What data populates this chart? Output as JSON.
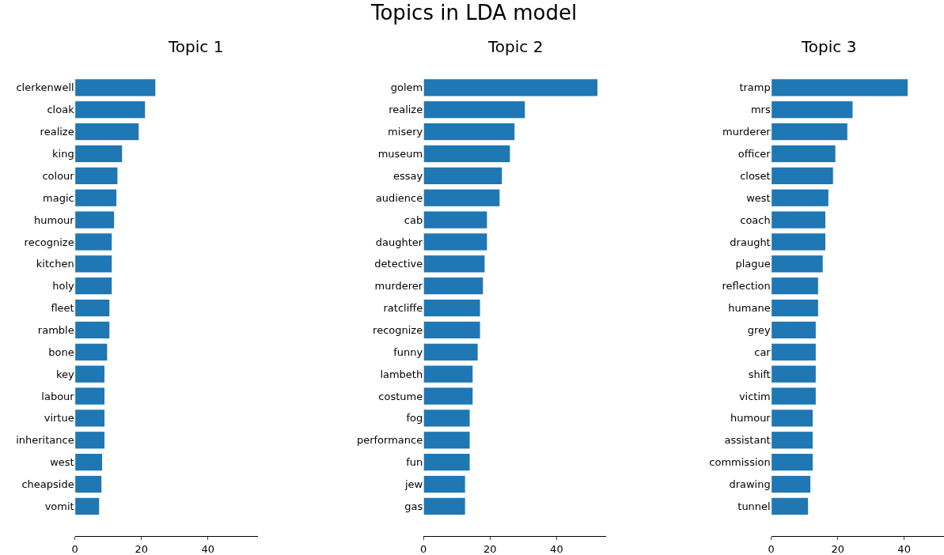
{
  "chart_data": [
    {
      "type": "bar",
      "orientation": "horizontal",
      "title": "Topic 1",
      "annotations": [
        "Topics in LDA model"
      ],
      "color": "#1f77b4",
      "xlim": [
        0,
        55
      ],
      "xticks": [
        0,
        20,
        40
      ],
      "categories": [
        "clerkenwell",
        "cloak",
        "realize",
        "king",
        "colour",
        "magic",
        "humour",
        "recognize",
        "kitchen",
        "holy",
        "fleet",
        "ramble",
        "bone",
        "key",
        "labour",
        "virtue",
        "inheritance",
        "west",
        "cheapside",
        "vomit"
      ],
      "values": [
        24.3,
        21.2,
        19.3,
        14.3,
        12.9,
        12.6,
        11.9,
        11.2,
        11.2,
        11.2,
        10.5,
        10.5,
        9.8,
        9.0,
        9.0,
        9.0,
        9.0,
        8.3,
        8.1,
        7.4
      ]
    },
    {
      "type": "bar",
      "orientation": "horizontal",
      "title": "Topic 2",
      "color": "#1f77b4",
      "xlim": [
        0,
        55
      ],
      "xticks": [
        0,
        20,
        40
      ],
      "categories": [
        "golem",
        "realize",
        "misery",
        "museum",
        "essay",
        "audience",
        "cab",
        "daughter",
        "detective",
        "murderer",
        "ratcliffe",
        "recognize",
        "funny",
        "lambeth",
        "costume",
        "fog",
        "performance",
        "fun",
        "jew",
        "gas"
      ],
      "values": [
        52.4,
        30.6,
        27.5,
        26.1,
        23.7,
        23.0,
        19.2,
        19.2,
        18.5,
        18.0,
        17.1,
        17.1,
        16.4,
        14.9,
        14.9,
        14.0,
        14.0,
        14.0,
        12.6,
        12.6
      ]
    },
    {
      "type": "bar",
      "orientation": "horizontal",
      "title": "Topic 3",
      "color": "#1f77b4",
      "xlim": [
        0,
        52
      ],
      "xticks": [
        0,
        20,
        40
      ],
      "categories": [
        "tramp",
        "mrs",
        "murderer",
        "officer",
        "closet",
        "west",
        "coach",
        "draught",
        "plague",
        "reflection",
        "humane",
        "grey",
        "car",
        "shift",
        "victim",
        "humour",
        "assistant",
        "commission",
        "drawing",
        "tunnel"
      ],
      "values": [
        41.2,
        24.6,
        23.0,
        19.4,
        18.7,
        17.3,
        16.4,
        16.4,
        15.6,
        14.2,
        14.2,
        13.5,
        13.5,
        13.5,
        13.5,
        12.6,
        12.6,
        12.6,
        11.9,
        11.2
      ]
    }
  ]
}
